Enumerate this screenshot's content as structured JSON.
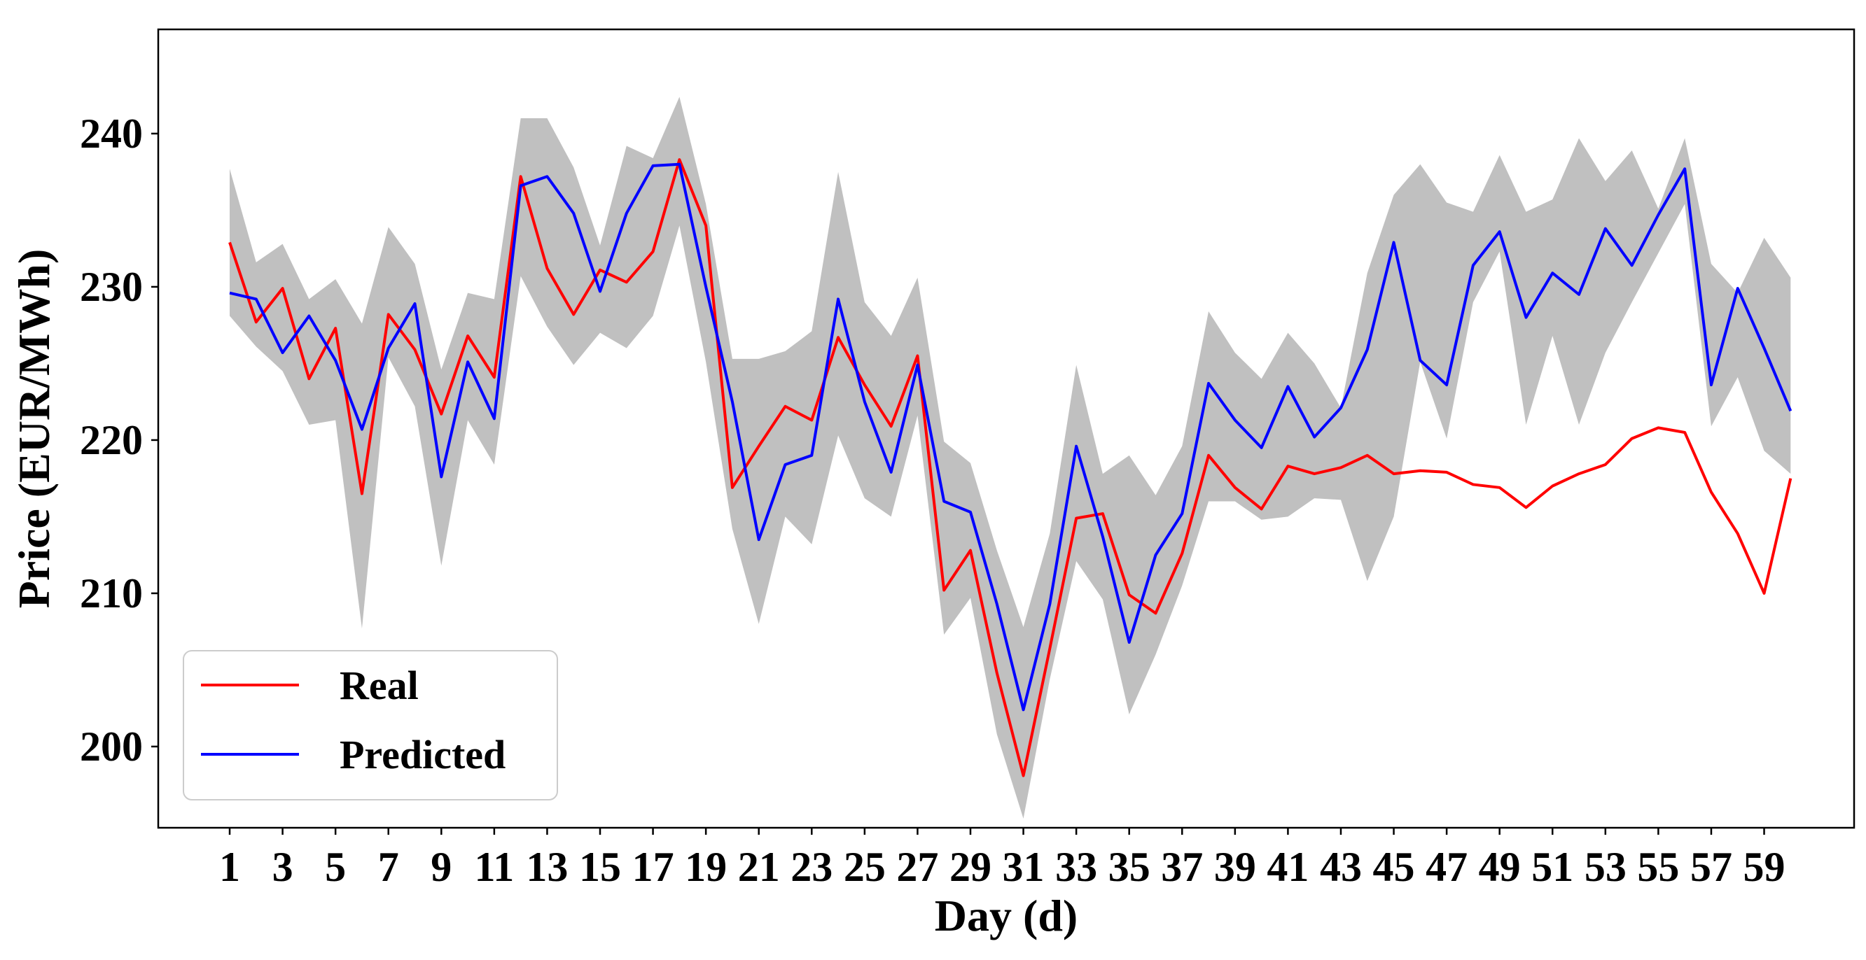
{
  "chart_data": {
    "type": "line",
    "title": "",
    "xlabel": "Day (d)",
    "ylabel": "Price (EUR/MWh)",
    "xlim": [
      -1.7,
      62.4
    ],
    "ylim": [
      194.7,
      246.8
    ],
    "x_ticks": [
      1,
      3,
      5,
      7,
      9,
      11,
      13,
      15,
      17,
      19,
      21,
      23,
      25,
      27,
      29,
      31,
      33,
      35,
      37,
      39,
      41,
      43,
      45,
      47,
      49,
      51,
      53,
      55,
      57,
      59
    ],
    "y_ticks": [
      200,
      210,
      220,
      230,
      240
    ],
    "x": [
      1,
      2,
      3,
      4,
      5,
      6,
      7,
      8,
      9,
      10,
      11,
      12,
      13,
      14,
      15,
      16,
      17,
      18,
      19,
      20,
      21,
      22,
      23,
      24,
      25,
      26,
      27,
      28,
      29,
      30,
      31,
      32,
      33,
      34,
      35,
      36,
      37,
      38,
      39,
      40,
      41,
      42,
      43,
      44,
      45,
      46,
      47,
      48,
      49,
      50,
      51,
      52,
      53,
      54,
      55,
      56,
      57,
      58,
      59,
      60
    ],
    "series": [
      {
        "name": "Real",
        "color": "#ff0000",
        "values": [
          232.9,
          227.7,
          229.9,
          224.0,
          227.3,
          216.5,
          228.2,
          225.9,
          221.7,
          226.8,
          224.1,
          237.2,
          231.2,
          228.2,
          231.1,
          230.3,
          232.3,
          238.3,
          234.0,
          216.9,
          219.6,
          222.2,
          221.3,
          226.7,
          223.6,
          220.9,
          225.5,
          210.2,
          212.8,
          204.8,
          198.1,
          206.4,
          214.9,
          215.2,
          209.9,
          208.7,
          212.6,
          219.0,
          216.9,
          215.5,
          218.3,
          217.8,
          218.2,
          219.0,
          217.8,
          218.0,
          217.9,
          217.1,
          216.9,
          215.6,
          217.0,
          217.8,
          218.4,
          220.1,
          220.8,
          220.5,
          216.6,
          213.9,
          210.0,
          217.5
        ]
      },
      {
        "name": "Predicted",
        "color": "#0000ff",
        "values": [
          229.6,
          229.2,
          225.7,
          228.1,
          225.2,
          220.7,
          226.0,
          228.9,
          217.6,
          225.1,
          221.4,
          236.6,
          237.2,
          234.8,
          229.7,
          234.8,
          237.9,
          238.0,
          230.0,
          222.5,
          213.5,
          218.4,
          219.0,
          229.2,
          222.5,
          217.9,
          224.9,
          216.0,
          215.3,
          209.3,
          202.4,
          209.3,
          219.6,
          213.7,
          206.8,
          212.5,
          215.2,
          223.7,
          221.3,
          219.5,
          223.5,
          220.2,
          222.1,
          225.9,
          232.9,
          225.2,
          223.6,
          231.4,
          233.6,
          228.0,
          230.9,
          229.5,
          233.8,
          231.4,
          234.7,
          237.7,
          223.6,
          229.9,
          226.0,
          221.9
        ]
      }
    ],
    "band": {
      "color": "#c0c0c0",
      "upper": [
        237.7,
        231.6,
        232.8,
        229.2,
        230.5,
        227.6,
        233.9,
        231.5,
        224.6,
        229.6,
        229.2,
        241.0,
        241.0,
        237.8,
        232.7,
        239.2,
        238.4,
        242.4,
        235.4,
        225.3,
        225.3,
        225.8,
        227.1,
        237.5,
        229.0,
        226.8,
        230.6,
        219.9,
        218.5,
        212.8,
        207.8,
        213.9,
        224.9,
        217.8,
        219.0,
        216.4,
        219.6,
        228.4,
        225.7,
        224.0,
        227.0,
        225.0,
        222.1,
        230.9,
        236.0,
        238.0,
        235.5,
        234.9,
        238.6,
        234.9,
        235.7,
        239.7,
        236.9,
        238.9,
        235.1,
        239.7,
        231.5,
        229.6,
        233.2,
        230.6
      ],
      "lower": [
        228.1,
        226.1,
        224.5,
        221.0,
        221.3,
        207.7,
        225.4,
        222.2,
        211.8,
        221.3,
        218.4,
        230.7,
        227.4,
        224.9,
        227.0,
        226.0,
        228.1,
        234.0,
        225.1,
        214.2,
        208.0,
        215.0,
        213.2,
        220.3,
        216.2,
        215.0,
        221.6,
        207.3,
        209.7,
        200.8,
        195.3,
        204.4,
        212.1,
        209.6,
        202.1,
        206.0,
        210.5,
        216.0,
        216.0,
        214.8,
        215.0,
        216.2,
        216.1,
        210.8,
        215.0,
        225.1,
        220.1,
        229.0,
        232.3,
        221.0,
        226.8,
        221.0,
        225.7,
        229.0,
        232.2,
        235.4,
        220.9,
        224.1,
        219.3,
        217.8
      ]
    },
    "legend": {
      "position": "lower-left",
      "entries": [
        "Real",
        "Predicted"
      ]
    },
    "grid": false
  }
}
